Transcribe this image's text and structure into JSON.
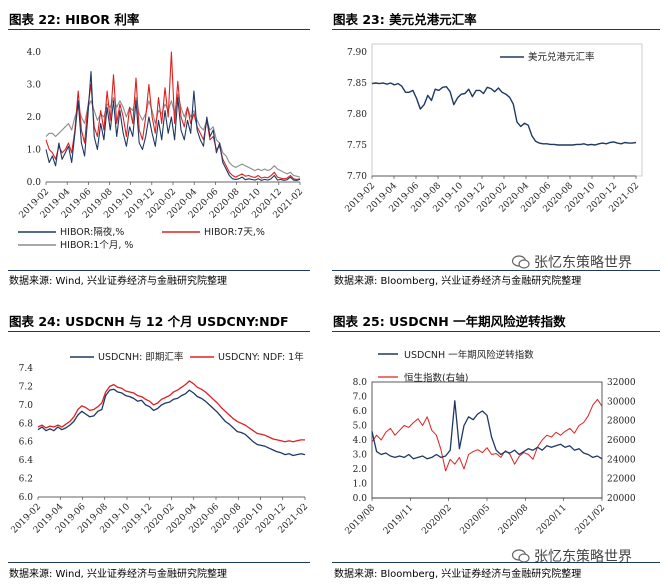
{
  "panels": {
    "p22": {
      "title": "图表 22:  HIBOR 利率",
      "source": "数据来源:  Wind, 兴业证券经济与金融研究院整理"
    },
    "p23": {
      "title": "图表 23:  美元兑港元汇率",
      "source": "数据来源:  Bloomberg, 兴业证券经济与金融研究院整理"
    },
    "p24": {
      "title": "图表 24:  USDCNH 与 12 个月 USDCNY:NDF",
      "source": "数据来源:  Wind, 兴业证券经济与金融研究院整理"
    },
    "p25": {
      "title": "图表 25:  USDCNH 一年期风险逆转指数",
      "source": "数据来源:  Bloomberg, 兴业证券经济与金融研究院整理"
    }
  },
  "watermark": {
    "text": "张忆东策略世界"
  },
  "colors": {
    "navy": "#1f3864",
    "red": "#e0201f",
    "gray": "#8c8c8c",
    "rule": "#1f3864"
  },
  "chart_data": [
    {
      "id": "hibor",
      "type": "line",
      "ylim": [
        0,
        4.0
      ],
      "yticks": [
        "0.0",
        "1.0",
        "2.0",
        "3.0",
        "4.0"
      ],
      "xticks": [
        "2019-02",
        "2019-04",
        "2019-06",
        "2019-08",
        "2019-10",
        "2019-12",
        "2020-02",
        "2020-04",
        "2020-06",
        "2020-08",
        "2020-10",
        "2020-12",
        "2021-02"
      ],
      "series": [
        {
          "name": "HIBOR:隔夜,%",
          "color": "#1f3864",
          "values": [
            1.0,
            0.6,
            0.8,
            0.5,
            1.2,
            0.7,
            0.9,
            1.1,
            0.6,
            1.5,
            2.5,
            1.2,
            0.8,
            2.0,
            3.4,
            1.4,
            1.0,
            1.8,
            1.3,
            2.3,
            1.6,
            2.5,
            1.4,
            2.2,
            1.5,
            1.1,
            1.7,
            1.4,
            2.5,
            1.2,
            1.0,
            1.4,
            2.0,
            1.5,
            1.1,
            1.9,
            1.3,
            2.2,
            1.5,
            2.0,
            1.3,
            2.6,
            1.6,
            1.3,
            1.9,
            1.5,
            2.8,
            1.6,
            1.3,
            1.1,
            2.0,
            1.4,
            1.6,
            0.9,
            1.2,
            0.6,
            0.4,
            0.2,
            0.1,
            0.08,
            0.1,
            0.15,
            0.07,
            0.1,
            0.08,
            0.06,
            0.1,
            0.05,
            0.08,
            0.06,
            0.1,
            0.2,
            0.06,
            0.08,
            0.05,
            0.07,
            0.15,
            0.06,
            0.05,
            0.08
          ]
        },
        {
          "name": "HIBOR:7天,%",
          "color": "#e0201f",
          "values": [
            1.3,
            1.0,
            0.9,
            0.7,
            1.1,
            0.9,
            1.0,
            1.2,
            0.9,
            1.6,
            2.8,
            1.6,
            1.2,
            2.3,
            3.0,
            1.7,
            1.4,
            2.2,
            1.6,
            2.8,
            1.9,
            3.3,
            1.8,
            2.4,
            2.0,
            1.4,
            2.3,
            1.8,
            3.2,
            1.6,
            1.3,
            2.0,
            3.0,
            2.0,
            1.5,
            2.6,
            1.8,
            2.9,
            2.0,
            4.0,
            1.8,
            3.1,
            2.0,
            1.7,
            2.3,
            1.8,
            2.1,
            1.7,
            1.5,
            1.3,
            1.9,
            1.3,
            1.4,
            1.0,
            1.1,
            0.7,
            0.5,
            0.3,
            0.2,
            0.15,
            0.2,
            0.25,
            0.18,
            0.2,
            0.16,
            0.14,
            0.2,
            0.12,
            0.15,
            0.13,
            0.2,
            0.3,
            0.15,
            0.12,
            0.1,
            0.12,
            0.2,
            0.1,
            0.08,
            0.1
          ]
        },
        {
          "name": "HIBOR:1个月, %",
          "color": "#8c8c8c",
          "values": [
            1.4,
            1.5,
            1.5,
            1.4,
            1.5,
            1.6,
            1.7,
            1.8,
            1.6,
            2.0,
            2.3,
            2.0,
            1.8,
            2.3,
            2.5,
            2.2,
            1.9,
            2.1,
            2.0,
            2.4,
            2.3,
            2.6,
            2.3,
            2.5,
            2.3,
            2.0,
            2.3,
            2.2,
            2.6,
            2.1,
            1.9,
            2.1,
            2.5,
            2.2,
            1.8,
            2.2,
            2.1,
            2.4,
            2.2,
            2.5,
            2.1,
            2.7,
            2.3,
            2.0,
            2.3,
            2.0,
            2.2,
            1.9,
            1.7,
            1.6,
            1.9,
            1.6,
            1.7,
            1.3,
            1.2,
            0.9,
            0.8,
            0.6,
            0.5,
            0.45,
            0.5,
            0.55,
            0.5,
            0.45,
            0.4,
            0.35,
            0.4,
            0.35,
            0.4,
            0.35,
            0.4,
            0.5,
            0.4,
            0.35,
            0.3,
            0.25,
            0.3,
            0.2,
            0.18,
            0.15
          ]
        }
      ]
    },
    {
      "id": "usdhkd",
      "type": "line",
      "ylim": [
        7.7,
        7.9
      ],
      "yticks": [
        "7.70",
        "7.75",
        "7.80",
        "7.85",
        "7.90"
      ],
      "xticks": [
        "2019-02",
        "2019-04",
        "2019-06",
        "2019-08",
        "2019-10",
        "2019-12",
        "2020-02",
        "2020-04",
        "2020-06",
        "2020-08",
        "2020-10",
        "2020-12",
        "2021-02"
      ],
      "series": [
        {
          "name": "美元兑港元汇率",
          "color": "#1f3864",
          "values": [
            7.849,
            7.85,
            7.849,
            7.85,
            7.848,
            7.85,
            7.847,
            7.849,
            7.845,
            7.835,
            7.835,
            7.838,
            7.825,
            7.808,
            7.815,
            7.83,
            7.822,
            7.84,
            7.838,
            7.843,
            7.844,
            7.836,
            7.815,
            7.826,
            7.832,
            7.833,
            7.84,
            7.828,
            7.838,
            7.838,
            7.833,
            7.843,
            7.841,
            7.836,
            7.842,
            7.835,
            7.832,
            7.827,
            7.816,
            7.787,
            7.78,
            7.785,
            7.782,
            7.765,
            7.756,
            7.753,
            7.752,
            7.752,
            7.751,
            7.751,
            7.75,
            7.75,
            7.75,
            7.75,
            7.75,
            7.751,
            7.751,
            7.752,
            7.75,
            7.751,
            7.75,
            7.752,
            7.753,
            7.752,
            7.754,
            7.755,
            7.753,
            7.752,
            7.754,
            7.753,
            7.753,
            7.754
          ]
        }
      ]
    },
    {
      "id": "usdcnh",
      "type": "line",
      "ylim": [
        6.0,
        7.4
      ],
      "yticks": [
        "6.0",
        "6.2",
        "6.4",
        "6.6",
        "6.8",
        "7.0",
        "7.2",
        "7.4"
      ],
      "xticks": [
        "2019-02",
        "2019-04",
        "2019-06",
        "2019-08",
        "2019-10",
        "2019-12",
        "2020-02",
        "2020-04",
        "2020-06",
        "2020-08",
        "2020-10",
        "2020-12",
        "2021-02"
      ],
      "series": [
        {
          "name": "USDCNH: 即期汇率",
          "color": "#1f3864",
          "values": [
            6.73,
            6.76,
            6.72,
            6.74,
            6.72,
            6.76,
            6.73,
            6.75,
            6.78,
            6.82,
            6.89,
            6.93,
            6.9,
            6.87,
            6.88,
            6.93,
            6.95,
            7.1,
            7.16,
            7.17,
            7.14,
            7.13,
            7.1,
            7.09,
            7.07,
            7.04,
            7.05,
            7.0,
            6.98,
            6.94,
            6.96,
            7.0,
            7.02,
            7.03,
            7.06,
            7.07,
            7.1,
            7.12,
            7.16,
            7.13,
            7.09,
            7.07,
            7.04,
            7.0,
            6.96,
            6.92,
            6.87,
            6.82,
            6.79,
            6.75,
            6.71,
            6.7,
            6.68,
            6.64,
            6.6,
            6.57,
            6.56,
            6.55,
            6.53,
            6.51,
            6.49,
            6.48,
            6.46,
            6.47,
            6.45,
            6.46,
            6.47,
            6.46
          ]
        },
        {
          "name": "USDCNY: NDF: 1年",
          "color": "#e0201f",
          "values": [
            6.76,
            6.78,
            6.75,
            6.77,
            6.76,
            6.78,
            6.76,
            6.79,
            6.82,
            6.87,
            6.95,
            6.99,
            6.97,
            6.94,
            6.95,
            6.98,
            7.02,
            7.14,
            7.2,
            7.22,
            7.19,
            7.18,
            7.15,
            7.14,
            7.13,
            7.1,
            7.09,
            7.06,
            7.04,
            7.0,
            7.02,
            7.06,
            7.08,
            7.1,
            7.14,
            7.16,
            7.19,
            7.22,
            7.26,
            7.23,
            7.19,
            7.17,
            7.14,
            7.1,
            7.06,
            7.02,
            6.97,
            6.93,
            6.89,
            6.85,
            6.82,
            6.8,
            6.78,
            6.75,
            6.72,
            6.69,
            6.68,
            6.67,
            6.65,
            6.63,
            6.62,
            6.61,
            6.6,
            6.61,
            6.6,
            6.61,
            6.62,
            6.62
          ]
        }
      ]
    },
    {
      "id": "rr",
      "type": "line",
      "ylim_left": [
        0.0,
        8.0
      ],
      "ylim_right": [
        20000,
        32000
      ],
      "yticks_left": [
        "0.0",
        "1.0",
        "2.0",
        "3.0",
        "4.0",
        "5.0",
        "6.0",
        "7.0",
        "8.0"
      ],
      "yticks_right": [
        "20000",
        "22000",
        "24000",
        "26000",
        "28000",
        "30000",
        "32000"
      ],
      "xticks": [
        "2019/08",
        "2019/11",
        "2020/02",
        "2020/05",
        "2020/08",
        "2020/11",
        "2021/02"
      ],
      "series": [
        {
          "name": "USDCNH 一年期风险逆转指数",
          "color": "#1f3864",
          "axis": "left",
          "values": [
            4.6,
            3.2,
            3.0,
            3.1,
            2.9,
            2.8,
            2.9,
            2.8,
            3.0,
            2.7,
            2.8,
            2.9,
            2.7,
            2.8,
            3.0,
            2.8,
            2.9,
            3.3,
            6.7,
            3.4,
            5.0,
            5.6,
            5.4,
            5.8,
            6.0,
            5.7,
            4.2,
            3.3,
            3.0,
            3.2,
            3.1,
            3.3,
            3.0,
            3.2,
            3.4,
            3.3,
            3.5,
            3.3,
            3.6,
            3.5,
            3.6,
            3.7,
            3.5,
            3.6,
            3.3,
            3.4,
            3.1,
            3.0,
            2.8,
            2.9,
            2.7
          ]
        },
        {
          "name": "恒生指数(右轴)",
          "color": "#e0201f",
          "axis": "right",
          "values": [
            25800,
            26500,
            26000,
            26800,
            27200,
            26500,
            27000,
            27500,
            27300,
            27800,
            28200,
            27500,
            28400,
            27000,
            26500,
            25000,
            22800,
            24000,
            23500,
            24200,
            23000,
            24500,
            24800,
            25000,
            24700,
            25200,
            24500,
            24600,
            24200,
            24900,
            24500,
            23500,
            24300,
            24700,
            24500,
            24000,
            25300,
            26000,
            26500,
            26300,
            26800,
            26500,
            26900,
            27200,
            26700,
            27500,
            27800,
            28500,
            29600,
            30200,
            29500
          ]
        }
      ]
    }
  ]
}
